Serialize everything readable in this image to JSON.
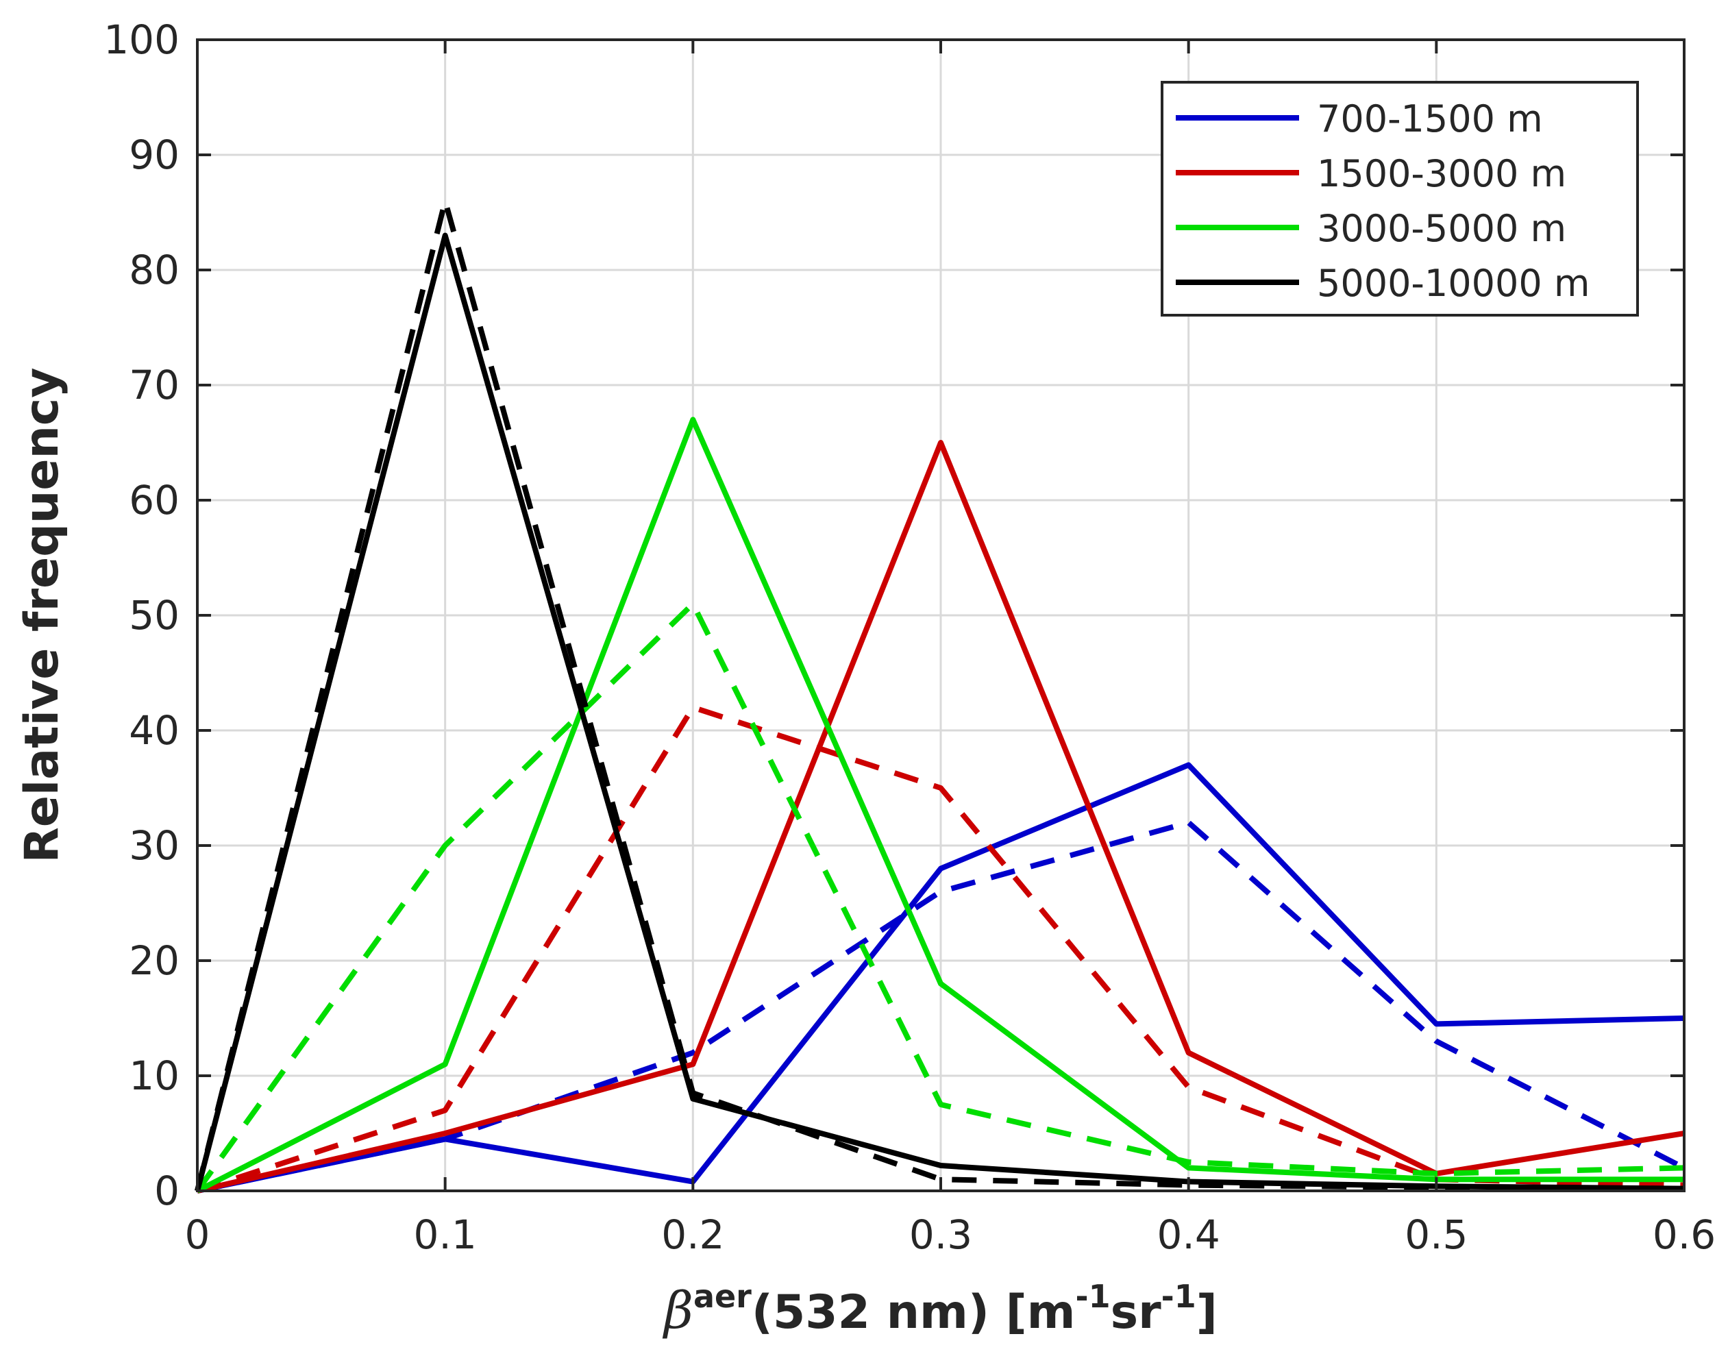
{
  "chart_data": {
    "type": "line",
    "title": "",
    "xlabel": {
      "symbol": "β",
      "symbol_sup": "aer",
      "main": "(532 nm) [m",
      "exp1": "-1",
      "unit2": "sr",
      "exp2": "-1",
      "close": "]"
    },
    "ylabel": "Relative frequency",
    "xlim": [
      0,
      0.6
    ],
    "ylim": [
      0,
      100
    ],
    "x": [
      0,
      0.1,
      0.2,
      0.3,
      0.4,
      0.5,
      0.6
    ],
    "x_tick_labels": [
      "0",
      "0.1",
      "0.2",
      "0.3",
      "0.4",
      "0.5",
      "0.6"
    ],
    "y_tick_labels": [
      "0",
      "10",
      "20",
      "30",
      "40",
      "50",
      "60",
      "70",
      "80",
      "90",
      "100"
    ],
    "y_ticks": [
      0,
      10,
      20,
      30,
      40,
      50,
      60,
      70,
      80,
      90,
      100
    ],
    "grid": true,
    "legend_position": "top-right",
    "series": [
      {
        "name": "700-1500 m",
        "color": "#0000cc",
        "style": "solid",
        "values": [
          0,
          4.5,
          0.8,
          28,
          37,
          14.5,
          15
        ]
      },
      {
        "name": "700-1500 m",
        "color": "#0000cc",
        "style": "dashed",
        "values": [
          0,
          4.5,
          12,
          26,
          32,
          13,
          2
        ],
        "in_legend": false
      },
      {
        "name": "1500-3000 m",
        "color": "#cc0000",
        "style": "solid",
        "values": [
          0,
          5,
          11,
          65,
          12,
          1.5,
          5
        ]
      },
      {
        "name": "1500-3000 m",
        "color": "#cc0000",
        "style": "dashed",
        "values": [
          0,
          7,
          42,
          35,
          9,
          1,
          0.5
        ],
        "in_legend": false
      },
      {
        "name": "3000-5000 m",
        "color": "#00dd00",
        "style": "solid",
        "values": [
          0,
          11,
          67,
          18,
          2,
          1,
          1
        ]
      },
      {
        "name": "3000-5000 m",
        "color": "#00dd00",
        "style": "dashed",
        "values": [
          0,
          30,
          51,
          7.5,
          2.5,
          1.5,
          2
        ],
        "in_legend": false
      },
      {
        "name": "5000-10000 m",
        "color": "#000000",
        "style": "solid",
        "values": [
          0,
          83,
          8,
          2.2,
          0.8,
          0.4,
          0.2
        ]
      },
      {
        "name": "5000-10000 m",
        "color": "#000000",
        "style": "dashed",
        "values": [
          0,
          86,
          8.5,
          1,
          0.5,
          0.3,
          0.2
        ],
        "in_legend": false
      }
    ],
    "legend": [
      "700-1500 m",
      "1500-3000 m",
      "3000-5000 m",
      "5000-10000 m"
    ],
    "colors": {
      "700-1500 m": "#0000cc",
      "1500-3000 m": "#cc0000",
      "3000-5000 m": "#00dd00",
      "5000-10000 m": "#000000"
    }
  }
}
